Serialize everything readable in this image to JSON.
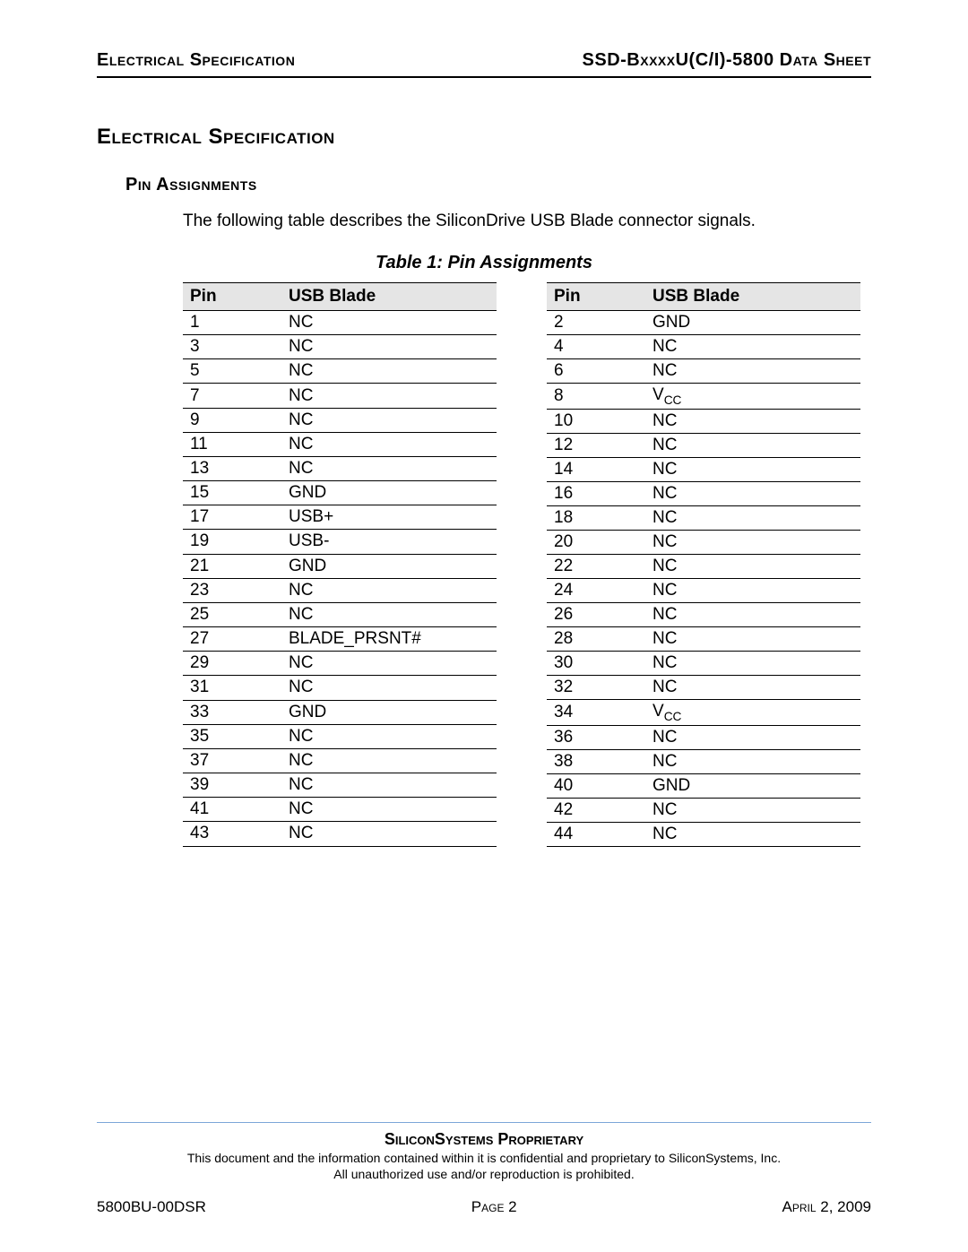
{
  "header": {
    "left": "Electrical Specification",
    "right": "SSD-BxxxxU(C/I)-5800 Data Sheet"
  },
  "section_title": "Electrical Specification",
  "subsection_title": "Pin Assignments",
  "intro_text": "The following table describes the SiliconDrive USB Blade connector signals.",
  "table_caption": "Table 1:  Pin Assignments",
  "table": {
    "col_pin": "Pin",
    "col_signal": "USB Blade",
    "header_bg": "#e5e5e5",
    "border_color": "#000000",
    "left_rows": [
      {
        "pin": "1",
        "sig": "NC"
      },
      {
        "pin": "3",
        "sig": "NC"
      },
      {
        "pin": "5",
        "sig": "NC"
      },
      {
        "pin": "7",
        "sig": "NC"
      },
      {
        "pin": "9",
        "sig": "NC"
      },
      {
        "pin": "11",
        "sig": "NC"
      },
      {
        "pin": "13",
        "sig": "NC"
      },
      {
        "pin": "15",
        "sig": "GND"
      },
      {
        "pin": "17",
        "sig": "USB+"
      },
      {
        "pin": "19",
        "sig": "USB-"
      },
      {
        "pin": "21",
        "sig": "GND"
      },
      {
        "pin": "23",
        "sig": "NC"
      },
      {
        "pin": "25",
        "sig": "NC"
      },
      {
        "pin": "27",
        "sig": "BLADE_PRSNT#"
      },
      {
        "pin": "29",
        "sig": "NC"
      },
      {
        "pin": "31",
        "sig": "NC"
      },
      {
        "pin": "33",
        "sig": "GND"
      },
      {
        "pin": "35",
        "sig": "NC"
      },
      {
        "pin": "37",
        "sig": "NC"
      },
      {
        "pin": "39",
        "sig": "NC"
      },
      {
        "pin": "41",
        "sig": "NC"
      },
      {
        "pin": "43",
        "sig": "NC"
      }
    ],
    "right_rows": [
      {
        "pin": "2",
        "sig": "GND"
      },
      {
        "pin": "4",
        "sig": "NC"
      },
      {
        "pin": "6",
        "sig": "NC"
      },
      {
        "pin": "8",
        "sig": "VCC",
        "vcc": true
      },
      {
        "pin": "10",
        "sig": "NC"
      },
      {
        "pin": "12",
        "sig": "NC"
      },
      {
        "pin": "14",
        "sig": "NC"
      },
      {
        "pin": "16",
        "sig": "NC"
      },
      {
        "pin": "18",
        "sig": "NC"
      },
      {
        "pin": "20",
        "sig": "NC"
      },
      {
        "pin": "22",
        "sig": "NC"
      },
      {
        "pin": "24",
        "sig": "NC"
      },
      {
        "pin": "26",
        "sig": "NC"
      },
      {
        "pin": "28",
        "sig": "NC"
      },
      {
        "pin": "30",
        "sig": "NC"
      },
      {
        "pin": "32",
        "sig": "NC"
      },
      {
        "pin": "34",
        "sig": "VCC",
        "vcc": true
      },
      {
        "pin": "36",
        "sig": "NC"
      },
      {
        "pin": "38",
        "sig": "NC"
      },
      {
        "pin": "40",
        "sig": "GND"
      },
      {
        "pin": "42",
        "sig": "NC"
      },
      {
        "pin": "44",
        "sig": "NC"
      }
    ]
  },
  "footer": {
    "rule_color": "#7ca6d8",
    "proprietary": "SiliconSystems Proprietary",
    "legal1": "This document and the information contained within it is confidential and proprietary to SiliconSystems, Inc.",
    "legal2": "All unauthorized use and/or reproduction is prohibited.",
    "doc_num": "5800BU-00DSR",
    "page_label": "Page 2",
    "date": "April 2, 2009"
  }
}
